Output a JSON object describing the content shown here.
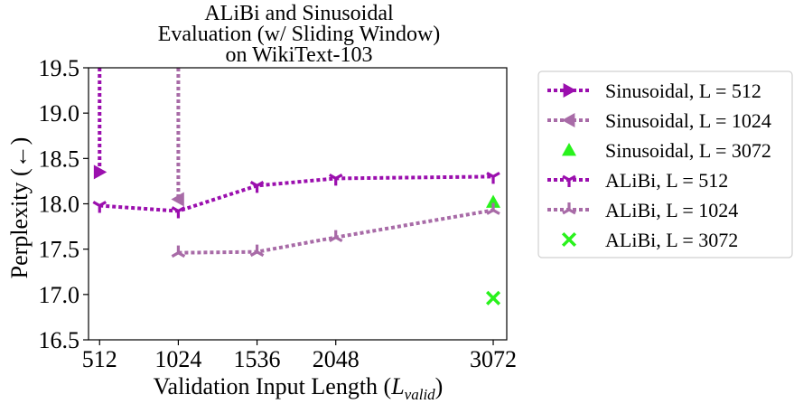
{
  "chart_data": {
    "type": "line",
    "title_lines": [
      "ALiBi and Sinusoidal",
      "Evaluation (w/ Sliding Window)",
      "on WikiText-103"
    ],
    "xlabel": {
      "main": "Validation Input Length (",
      "var": "L",
      "sub": "valid",
      "close": ")"
    },
    "ylabel": "Perplexity (←)",
    "x_ticks": [
      512,
      1024,
      1536,
      2048,
      3072
    ],
    "x_tick_labels": [
      "512",
      "1024",
      "1536",
      "2048",
      "3072"
    ],
    "y_ticks": [
      16.5,
      17.0,
      17.5,
      18.0,
      18.5,
      19.0,
      19.5
    ],
    "y_tick_labels": [
      "16.5",
      "17.0",
      "17.5",
      "18.0",
      "18.5",
      "19.0",
      "19.5"
    ],
    "xlim": [
      440,
      3160
    ],
    "ylim": [
      16.5,
      19.5
    ],
    "grid": false,
    "legend_placement": "outside right",
    "series": [
      {
        "name": "Sinusoidal, L = 512",
        "color": "#9b0fae",
        "marker": "triangle-right",
        "line": "dotted",
        "x": [
          512,
          512
        ],
        "y": [
          19.5,
          18.35
        ],
        "clipped_above": true
      },
      {
        "name": "Sinusoidal, L = 1024",
        "color": "#a86ba7",
        "marker": "triangle-left",
        "line": "dotted",
        "x": [
          1024,
          1024
        ],
        "y": [
          19.5,
          18.05
        ],
        "clipped_above": true
      },
      {
        "name": "Sinusoidal, L = 3072",
        "color": "#29f21c",
        "marker": "triangle-up",
        "line": "none",
        "x": [
          3072
        ],
        "y": [
          18.02
        ]
      },
      {
        "name": "ALiBi, L = 512",
        "color": "#9b0fae",
        "marker": "tri-down",
        "line": "dotted",
        "x": [
          512,
          1024,
          1536,
          2048,
          3072
        ],
        "y": [
          17.98,
          17.92,
          18.2,
          18.28,
          18.3
        ]
      },
      {
        "name": "ALiBi, L = 1024",
        "color": "#a86ba7",
        "marker": "tri-up",
        "line": "dotted",
        "x": [
          1024,
          1536,
          2048,
          3072
        ],
        "y": [
          17.46,
          17.47,
          17.63,
          17.93
        ]
      },
      {
        "name": "ALiBi, L = 3072",
        "color": "#29f21c",
        "marker": "x",
        "line": "none",
        "x": [
          3072
        ],
        "y": [
          16.96
        ]
      }
    ]
  }
}
